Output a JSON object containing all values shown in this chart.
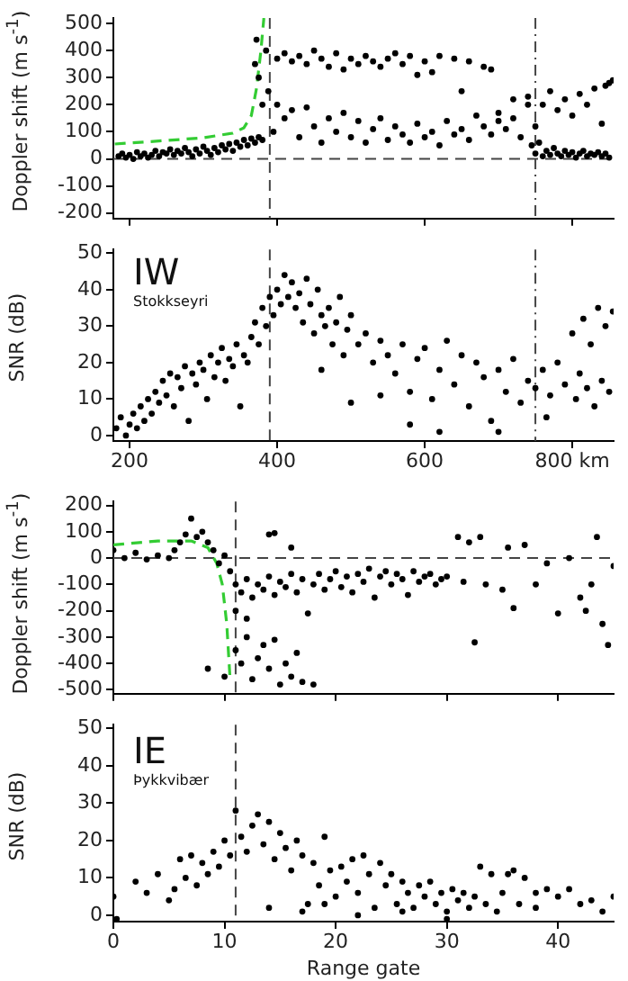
{
  "chart_data": [
    {
      "type": "scatter",
      "ylabel": "Doppler shift (m s$^{-1}$)",
      "xlim": [
        178,
        856
      ],
      "ylim": [
        -220,
        520
      ],
      "xticks": [
        200,
        400,
        600,
        800
      ],
      "yticks": [
        -200,
        -100,
        0,
        100,
        200,
        300,
        400,
        500
      ],
      "tick_labels": "y",
      "grid": false,
      "legend": false,
      "marker": "circle",
      "ref_lines": [
        {
          "axis": "x",
          "value": 390,
          "line_style": "dashed",
          "color": "#444444"
        },
        {
          "axis": "x",
          "value": 750,
          "line_style": "dotted",
          "color": "#444444"
        },
        {
          "axis": "y",
          "value": 0,
          "line_style": "dashed",
          "color": "#444444"
        }
      ],
      "series": [
        {
          "color": "#000000",
          "x": [
            185,
            190,
            195,
            200,
            205,
            210,
            215,
            220,
            225,
            230,
            235,
            240,
            245,
            250,
            255,
            260,
            265,
            270,
            275,
            280,
            285,
            290,
            295,
            300,
            305,
            310,
            315,
            320,
            325,
            330,
            335,
            340,
            345,
            350,
            355,
            360,
            365,
            370,
            375,
            380,
            370,
            372,
            375,
            380,
            385,
            388,
            400,
            410,
            420,
            430,
            440,
            450,
            460,
            470,
            480,
            490,
            500,
            510,
            520,
            530,
            540,
            550,
            560,
            570,
            580,
            590,
            600,
            610,
            620,
            640,
            650,
            660,
            680,
            690,
            395,
            400,
            410,
            420,
            430,
            440,
            450,
            460,
            470,
            480,
            490,
            500,
            510,
            520,
            530,
            540,
            550,
            560,
            570,
            580,
            590,
            600,
            610,
            620,
            630,
            640,
            650,
            660,
            670,
            680,
            690,
            700,
            710,
            720,
            730,
            740,
            750,
            745,
            750,
            755,
            760,
            765,
            770,
            775,
            780,
            785,
            790,
            795,
            800,
            805,
            810,
            815,
            820,
            825,
            830,
            835,
            840,
            845,
            850,
            700,
            720,
            740,
            760,
            770,
            780,
            790,
            800,
            810,
            820,
            830,
            840,
            845,
            850,
            855
          ],
          "values": [
            10,
            20,
            5,
            15,
            0,
            25,
            10,
            20,
            5,
            15,
            30,
            10,
            25,
            20,
            35,
            15,
            30,
            20,
            40,
            25,
            10,
            35,
            20,
            45,
            30,
            15,
            40,
            25,
            50,
            35,
            55,
            30,
            60,
            45,
            70,
            50,
            75,
            60,
            80,
            70,
            350,
            440,
            300,
            200,
            400,
            250,
            370,
            390,
            360,
            380,
            350,
            400,
            370,
            340,
            390,
            330,
            370,
            350,
            380,
            360,
            340,
            370,
            390,
            350,
            380,
            310,
            360,
            320,
            380,
            370,
            250,
            360,
            340,
            330,
            100,
            200,
            150,
            180,
            80,
            190,
            120,
            60,
            150,
            100,
            170,
            80,
            140,
            60,
            110,
            150,
            70,
            120,
            90,
            60,
            130,
            80,
            100,
            50,
            140,
            90,
            110,
            70,
            160,
            120,
            90,
            140,
            110,
            150,
            80,
            200,
            120,
            50,
            20,
            60,
            10,
            30,
            15,
            40,
            20,
            10,
            30,
            15,
            25,
            5,
            20,
            30,
            10,
            20,
            15,
            25,
            10,
            20,
            5,
            170,
            220,
            230,
            200,
            250,
            180,
            220,
            160,
            240,
            200,
            260,
            130,
            270,
            280,
            290
          ]
        },
        {
          "type": "line",
          "color": "#33cc33",
          "marker": "none",
          "line_style": "dashed",
          "x": [
            180,
            250,
            300,
            340,
            355,
            365,
            372,
            378,
            382
          ],
          "values": [
            55,
            68,
            78,
            95,
            115,
            160,
            260,
            400,
            520
          ]
        }
      ]
    },
    {
      "type": "scatter",
      "ylabel": "SNR (dB)",
      "annotations": [
        "IW",
        "Stokkseyri"
      ],
      "xlim": [
        178,
        856
      ],
      "ylim": [
        -1.5,
        51
      ],
      "xticks": [
        200,
        400,
        600,
        {
          "value": 800,
          "label": "800 km"
        }
      ],
      "yticks": [
        0,
        10,
        20,
        30,
        40,
        50
      ],
      "grid": false,
      "legend": false,
      "marker": "circle",
      "ref_lines": [
        {
          "axis": "x",
          "value": 390,
          "line_style": "dashed",
          "color": "#444444"
        },
        {
          "axis": "x",
          "value": 750,
          "line_style": "dotted",
          "color": "#444444"
        }
      ],
      "series": [
        {
          "color": "#000000",
          "x": [
            182,
            188,
            195,
            200,
            205,
            210,
            215,
            220,
            225,
            230,
            235,
            240,
            245,
            250,
            255,
            260,
            265,
            270,
            275,
            280,
            285,
            290,
            295,
            300,
            305,
            310,
            315,
            320,
            325,
            330,
            335,
            340,
            345,
            350,
            355,
            360,
            365,
            370,
            375,
            380,
            385,
            390,
            395,
            400,
            405,
            410,
            415,
            420,
            425,
            430,
            435,
            440,
            445,
            450,
            455,
            460,
            465,
            470,
            475,
            480,
            485,
            490,
            495,
            500,
            510,
            520,
            530,
            540,
            550,
            560,
            570,
            580,
            590,
            600,
            610,
            620,
            630,
            640,
            650,
            660,
            670,
            680,
            690,
            700,
            710,
            720,
            730,
            740,
            750,
            760,
            765,
            770,
            780,
            790,
            800,
            805,
            810,
            815,
            820,
            825,
            830,
            835,
            840,
            845,
            850,
            855,
            460,
            500,
            540,
            580,
            620,
            700
          ],
          "values": [
            2,
            5,
            0,
            3,
            6,
            2,
            8,
            4,
            10,
            6,
            12,
            9,
            15,
            11,
            17,
            8,
            16,
            13,
            19,
            4,
            17,
            14,
            20,
            18,
            10,
            22,
            16,
            20,
            24,
            15,
            21,
            19,
            25,
            8,
            22,
            20,
            27,
            31,
            25,
            35,
            30,
            38,
            33,
            40,
            36,
            44,
            38,
            42,
            35,
            39,
            31,
            43,
            36,
            28,
            40,
            33,
            30,
            35,
            25,
            31,
            38,
            22,
            29,
            33,
            25,
            28,
            20,
            26,
            22,
            17,
            25,
            12,
            21,
            24,
            10,
            18,
            26,
            14,
            22,
            8,
            20,
            16,
            4,
            18,
            12,
            21,
            9,
            15,
            13,
            18,
            5,
            11,
            20,
            14,
            28,
            10,
            17,
            32,
            13,
            25,
            8,
            35,
            15,
            30,
            12,
            34,
            18,
            9,
            11,
            3,
            1,
            1
          ]
        }
      ]
    },
    {
      "type": "scatter",
      "ylabel": "Doppler shift (m s$^{-1}$)",
      "xlim": [
        0,
        45
      ],
      "ylim": [
        -515,
        215
      ],
      "xticks": [
        0,
        10,
        20,
        30,
        40
      ],
      "yticks": [
        -500,
        -400,
        -300,
        -200,
        -100,
        0,
        100,
        200
      ],
      "tick_labels": "y",
      "grid": false,
      "legend": false,
      "marker": "circle",
      "ref_lines": [
        {
          "axis": "x",
          "value": 11,
          "line_style": "dashed",
          "color": "#444444"
        },
        {
          "axis": "y",
          "value": 0,
          "line_style": "dashed",
          "color": "#444444"
        }
      ],
      "series": [
        {
          "color": "#000000",
          "x": [
            0,
            1,
            2,
            3,
            4,
            5,
            5.5,
            6,
            6.5,
            7,
            7.5,
            8,
            8.5,
            9,
            9.5,
            10,
            10.5,
            11,
            11.5,
            12,
            12.5,
            13,
            13.5,
            14,
            14.5,
            15,
            15.5,
            16,
            16.5,
            17,
            17.5,
            18,
            18.5,
            19,
            19.5,
            20,
            20.5,
            21,
            21.5,
            22,
            22.5,
            23,
            23.5,
            24,
            24.5,
            25,
            25.5,
            26,
            26.5,
            27,
            27.5,
            28,
            28.5,
            29,
            29.5,
            30,
            31,
            31.5,
            32,
            32.5,
            33,
            33.5,
            35,
            35.5,
            36,
            37,
            38,
            39,
            40,
            41,
            42,
            42.5,
            43,
            43.5,
            44,
            44.5,
            45,
            14,
            14.5,
            16,
            8.5,
            10,
            11,
            11.5,
            12,
            12.5,
            13,
            13.5,
            14,
            14.5,
            15,
            15.5,
            16,
            16.5,
            17,
            18,
            11,
            12
          ],
          "values": [
            30,
            0,
            20,
            -5,
            10,
            0,
            30,
            60,
            90,
            150,
            80,
            100,
            60,
            30,
            -20,
            10,
            -50,
            -100,
            -130,
            -80,
            -150,
            -100,
            -120,
            -70,
            -140,
            -90,
            -110,
            -60,
            -130,
            -80,
            -210,
            -100,
            -60,
            -120,
            -80,
            -50,
            -110,
            -70,
            -130,
            -60,
            -90,
            -40,
            -150,
            -70,
            -50,
            -100,
            -60,
            -80,
            -140,
            -50,
            -90,
            -70,
            -60,
            -100,
            -80,
            -70,
            80,
            -90,
            60,
            -320,
            80,
            -100,
            -120,
            40,
            -190,
            50,
            -100,
            -20,
            -210,
            0,
            -150,
            -200,
            -100,
            80,
            -250,
            -330,
            -30,
            90,
            95,
            40,
            -420,
            -450,
            -350,
            -400,
            -300,
            -460,
            -380,
            -330,
            -420,
            -310,
            -480,
            -400,
            -450,
            -360,
            -470,
            -480,
            -200,
            -230
          ]
        },
        {
          "type": "line",
          "color": "#33cc33",
          "marker": "none",
          "line_style": "dashed",
          "x": [
            0,
            4,
            7,
            8.5,
            9.3,
            9.8,
            10.2,
            10.5
          ],
          "values": [
            50,
            65,
            65,
            40,
            -20,
            -100,
            -250,
            -460
          ]
        }
      ]
    },
    {
      "type": "scatter",
      "ylabel": "SNR (dB)",
      "xlabel": "Range gate",
      "annotations": [
        "IE",
        "Þykkvibær"
      ],
      "xlim": [
        0,
        45
      ],
      "ylim": [
        -1.7,
        51
      ],
      "xticks": [
        0,
        10,
        20,
        30,
        40
      ],
      "yticks": [
        0,
        10,
        20,
        30,
        40,
        50
      ],
      "grid": false,
      "legend": false,
      "marker": "circle",
      "ref_lines": [
        {
          "axis": "x",
          "value": 11,
          "line_style": "dashed",
          "color": "#444444"
        }
      ],
      "series": [
        {
          "color": "#000000",
          "x": [
            0,
            0.3,
            2,
            3,
            4,
            5,
            5.5,
            6,
            6.5,
            7,
            7.5,
            8,
            8.5,
            9,
            9.5,
            10,
            10.5,
            11,
            11.5,
            12,
            12.5,
            13,
            13.5,
            14,
            14.5,
            15,
            15.5,
            16,
            16.5,
            17,
            17.5,
            18,
            18.5,
            19,
            19.5,
            20,
            20.5,
            21,
            21.5,
            22,
            22.5,
            23,
            23.5,
            24,
            24.5,
            25,
            25.5,
            26,
            26.5,
            27,
            27.5,
            28,
            28.5,
            29,
            29.5,
            30,
            30.5,
            31,
            31.5,
            32,
            32.5,
            33,
            33.5,
            34,
            34.5,
            35,
            35.5,
            36,
            36.5,
            37,
            38,
            39,
            40,
            41,
            42,
            43,
            44,
            45,
            14,
            17,
            19,
            22,
            26,
            30,
            38
          ],
          "values": [
            5,
            -1,
            9,
            6,
            11,
            4,
            7,
            15,
            10,
            16,
            8,
            14,
            11,
            17,
            13,
            20,
            16,
            28,
            21,
            17,
            24,
            27,
            19,
            25,
            15,
            22,
            18,
            12,
            20,
            16,
            3,
            14,
            8,
            21,
            12,
            5,
            13,
            9,
            15,
            6,
            16,
            11,
            2,
            14,
            8,
            11,
            3,
            9,
            6,
            2,
            8,
            5,
            9,
            3,
            6,
            1,
            7,
            4,
            6,
            2,
            5,
            13,
            3,
            11,
            1,
            6,
            11,
            12,
            3,
            10,
            2,
            7,
            5,
            7,
            3,
            4,
            1,
            5,
            2,
            1,
            3,
            0,
            1,
            -1,
            6
          ]
        }
      ]
    }
  ]
}
